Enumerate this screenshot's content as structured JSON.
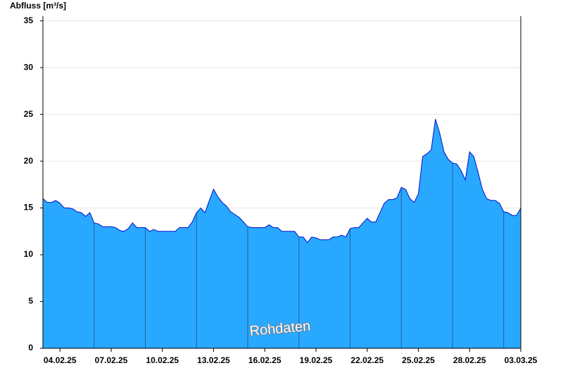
{
  "chart_data": {
    "type": "area",
    "ylabel": "Abfluss [m³/s]",
    "annotation": "Rohdaten",
    "xlim": [
      "03.02.25",
      "03.03.25"
    ],
    "xticks": [
      "04.02.25",
      "07.02.25",
      "10.02.25",
      "13.02.25",
      "16.02.25",
      "19.02.25",
      "22.02.25",
      "25.02.25",
      "28.02.25",
      "03.03.25"
    ],
    "xgrid": [
      "06.02.25",
      "09.02.25",
      "12.02.25",
      "15.02.25",
      "18.02.25",
      "21.02.25",
      "24.02.25",
      "27.02.25",
      "02.03.25"
    ],
    "ylim": [
      0,
      35.5
    ],
    "yticks": [
      0,
      5,
      10,
      15,
      20,
      25,
      30,
      35
    ],
    "grid": true,
    "series": [
      {
        "name": "Abfluss",
        "color": "#29a8ff",
        "line_color": "#0010c8",
        "values": [
          16,
          15.6,
          15.6,
          15.8,
          15.5,
          15,
          15,
          14.9,
          14.6,
          14.5,
          14.1,
          14.5,
          13.4,
          13.3,
          13,
          13,
          13,
          12.9,
          12.6,
          12.5,
          12.8,
          13.4,
          12.9,
          12.9,
          12.9,
          12.5,
          12.7,
          12.5,
          12.5,
          12.5,
          12.5,
          12.5,
          12.9,
          12.9,
          12.9,
          13.5,
          14.5,
          15,
          14.5,
          15.8,
          17,
          16.2,
          15.6,
          15.2,
          14.6,
          14.3,
          14,
          13.5,
          13,
          12.9,
          12.9,
          12.9,
          12.9,
          13.2,
          12.9,
          12.9,
          12.5,
          12.5,
          12.5,
          12.5,
          11.9,
          11.9,
          11.3,
          11.9,
          11.8,
          11.6,
          11.6,
          11.6,
          11.9,
          11.9,
          12.1,
          11.9,
          12.8,
          12.9,
          12.9,
          13.4,
          13.9,
          13.5,
          13.5,
          14.5,
          15.5,
          15.9,
          15.9,
          16.1,
          17.2,
          17,
          16,
          15.6,
          16.5,
          20.5,
          20.8,
          21.2,
          24.5,
          23,
          21,
          20.2,
          19.8,
          19.7,
          19,
          18,
          21,
          20.5,
          18.8,
          17,
          16,
          15.8,
          15.8,
          15.5,
          14.6,
          14.5,
          14.2,
          14.2,
          15
        ]
      }
    ]
  }
}
